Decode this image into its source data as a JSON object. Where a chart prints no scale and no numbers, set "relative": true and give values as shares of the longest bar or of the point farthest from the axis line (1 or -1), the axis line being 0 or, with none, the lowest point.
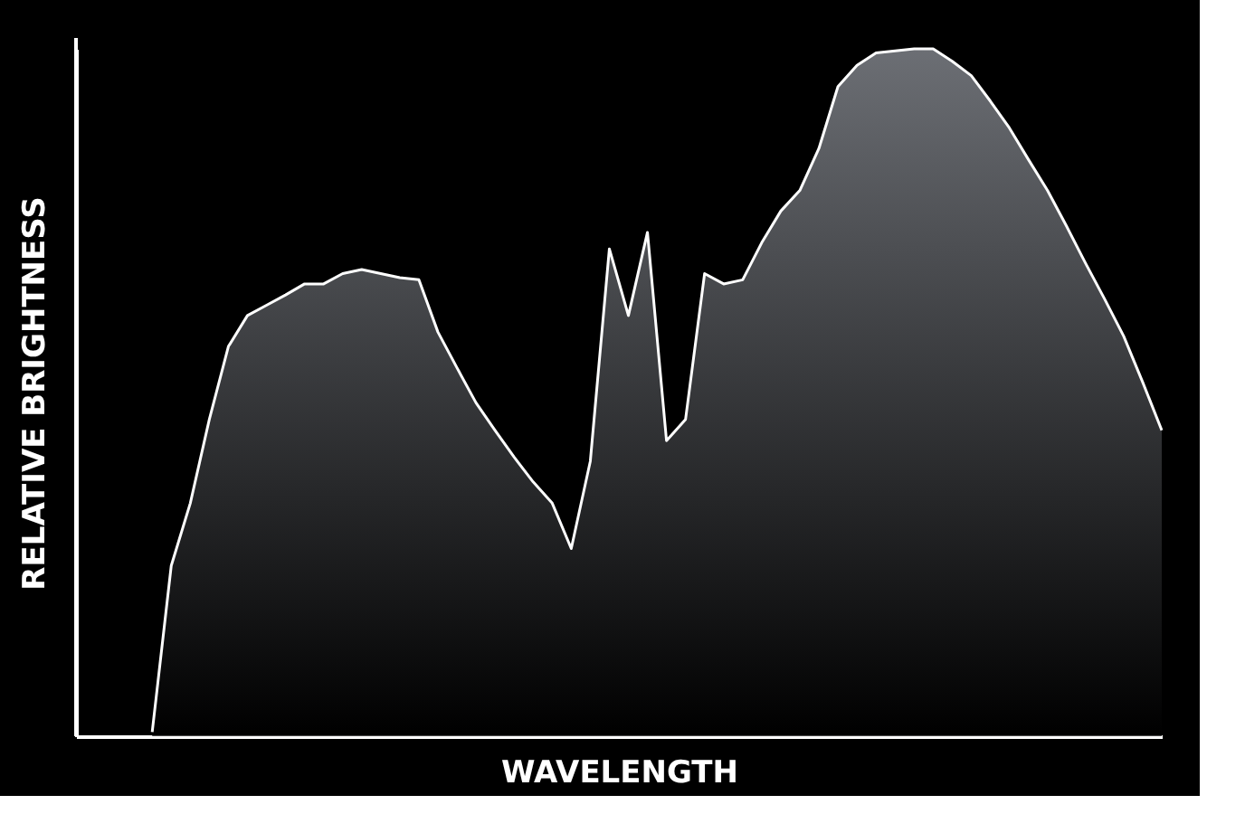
{
  "chart_data": {
    "type": "area",
    "relative": true,
    "xlabel": "WAVELENGTH",
    "ylabel": "RELATIVE BRIGHTNESS",
    "grid": false,
    "tick_labels": false,
    "categories": [
      null,
      null,
      null,
      null,
      null,
      null,
      null,
      null,
      null,
      null,
      null,
      null,
      null,
      null,
      null,
      null,
      null,
      null,
      null,
      null,
      null,
      null,
      null,
      null,
      null,
      null,
      null,
      null,
      null,
      null,
      null,
      null,
      null,
      null,
      null,
      null,
      null,
      null,
      null,
      null,
      null,
      null,
      null,
      null,
      null,
      null,
      null,
      null,
      null,
      null,
      null,
      null,
      null,
      null,
      null,
      null,
      null,
      null
    ],
    "series": [
      {
        "color": "#ffffff",
        "values": [
          null,
          null,
          null,
          null,
          0.006,
          0.248,
          0.339,
          0.461,
          0.567,
          0.612,
          0.627,
          0.642,
          0.658,
          0.658,
          0.673,
          0.679,
          0.673,
          0.667,
          0.664,
          0.588,
          0.536,
          0.485,
          0.445,
          0.406,
          0.37,
          0.339,
          0.273,
          0.4,
          0.709,
          0.612,
          0.733,
          0.43,
          0.461,
          0.673,
          0.658,
          0.664,
          0.718,
          0.764,
          0.794,
          0.855,
          0.945,
          0.976,
          0.994,
          0.997,
          1,
          1,
          0.982,
          0.961,
          0.924,
          0.885,
          0.839,
          0.794,
          0.742,
          0.688,
          0.636,
          0.582,
          0.515,
          0.445
        ]
      }
    ]
  }
}
